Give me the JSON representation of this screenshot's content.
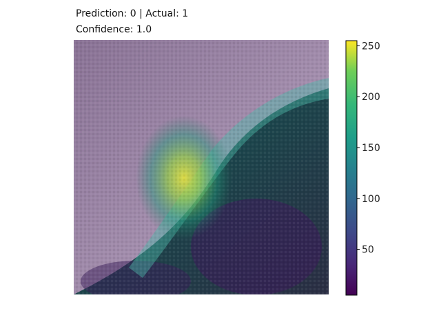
{
  "chart_data": {
    "type": "heatmap",
    "title_lines": [
      "Prediction: 0 | Actual: 1",
      "Confidence: 1.0"
    ],
    "colormap": "viridis",
    "colorbar": {
      "vmin": 5,
      "vmax": 255,
      "ticks": [
        50,
        100,
        150,
        200,
        250
      ]
    },
    "heatmap_hotspots": [
      {
        "label": "peak",
        "x": 0.42,
        "y": 0.52,
        "value": 250
      }
    ]
  },
  "colors": {
    "overlay_background": "#7a6a86",
    "tissue_dark": "#2e3347",
    "highlight_yellow": "#e8e13a",
    "highlight_green": "#1f7a5c"
  }
}
